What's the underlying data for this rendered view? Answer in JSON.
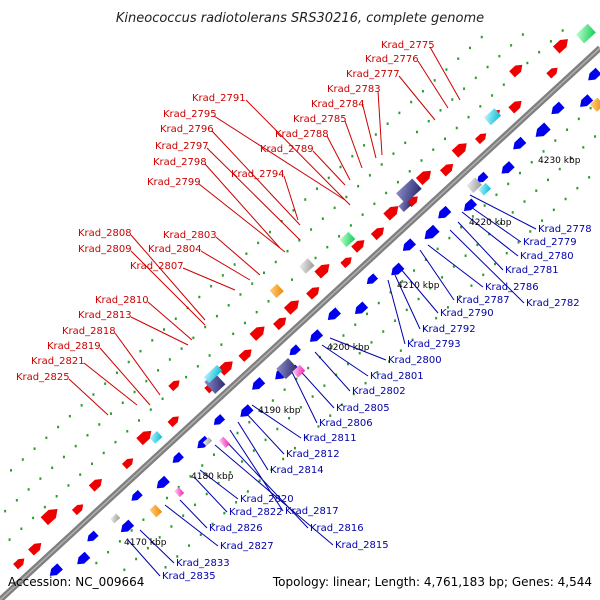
{
  "title": "Kineococcus radiotolerans SRS30216, complete genome",
  "accession": "Accession: NC_009664",
  "summary": "Topology: linear; Length: 4,761,183 bp; Genes: 4,544",
  "ticks": [
    "4230 kbp",
    "4220 kbp",
    "4210 kbp",
    "4200 kbp",
    "4190 kbp",
    "4180 kbp",
    "4170 kbp"
  ],
  "labels_upper": [
    "Krad_2775",
    "Krad_2776",
    "Krad_2777",
    "Krad_2783",
    "Krad_2784",
    "Krad_2785",
    "Krad_2788",
    "Krad_2789",
    "Krad_2791",
    "Krad_2795",
    "Krad_2796",
    "Krad_2797",
    "Krad_2798",
    "Krad_2794",
    "Krad_2799",
    "Krad_2803",
    "Krad_2804",
    "Krad_2807",
    "Krad_2808",
    "Krad_2809",
    "Krad_2810",
    "Krad_2813",
    "Krad_2818",
    "Krad_2819",
    "Krad_2821",
    "Krad_2825"
  ],
  "labels_lower": [
    "Krad_2778",
    "Krad_2779",
    "Krad_2780",
    "Krad_2781",
    "Krad_2782",
    "Krad_2786",
    "Krad_2787",
    "Krad_2790",
    "Krad_2792",
    "Krad_2793",
    "Krad_2800",
    "Krad_2801",
    "Krad_2802",
    "Krad_2805",
    "Krad_2806",
    "Krad_2811",
    "Krad_2812",
    "Krad_2814",
    "Krad_2820",
    "Krad_2822",
    "Krad_2817",
    "Krad_2816",
    "Krad_2815",
    "Krad_2826",
    "Krad_2827",
    "Krad_2833",
    "Krad_2835"
  ],
  "colors": {
    "forward": "#ee0000",
    "reverse": "#0000ee",
    "backbone": "#7f7f7f",
    "upper_label": "#cc0000",
    "lower_label": "#0000aa"
  }
}
